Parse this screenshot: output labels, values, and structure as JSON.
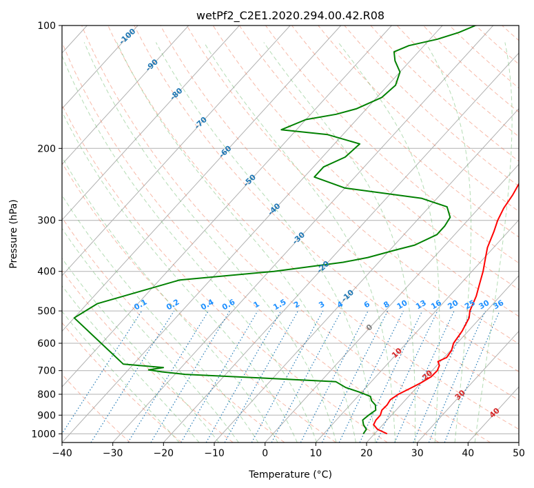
{
  "chart_data": {
    "type": "line",
    "subtype": "skew-t log-p diagram",
    "title": "wetPf2_C2E1.2020.294.00.42.R08",
    "xlabel": "Temperature (°C)",
    "ylabel": "Pressure (hPa)",
    "xlim": [
      -40,
      50
    ],
    "ylim": [
      1050,
      100
    ],
    "y_scale": "log",
    "grid": true,
    "x_ticks": [
      -40,
      -30,
      -20,
      -10,
      0,
      10,
      20,
      30,
      40,
      50
    ],
    "x_tick_labels": [
      "−40",
      "−30",
      "−20",
      "−10",
      "0",
      "10",
      "20",
      "30",
      "40",
      "50"
    ],
    "y_ticks": [
      1000,
      900,
      800,
      700,
      600,
      500,
      400,
      300,
      200,
      100
    ],
    "y_tick_labels": [
      "1000",
      "900",
      "800",
      "700",
      "600",
      "500",
      "400",
      "300",
      "200",
      "100"
    ],
    "series": [
      {
        "color": "#ff0000",
        "points": [
          [
            1000,
            22.5
          ],
          [
            975,
            19.8
          ],
          [
            950,
            18.2
          ],
          [
            925,
            17.8
          ],
          [
            900,
            17.8
          ],
          [
            875,
            17.2
          ],
          [
            850,
            17.3
          ],
          [
            825,
            17.0
          ],
          [
            800,
            17.6
          ],
          [
            775,
            18.8
          ],
          [
            750,
            20.0
          ],
          [
            725,
            20.9
          ],
          [
            700,
            21.0
          ],
          [
            680,
            20.5
          ],
          [
            665,
            19.5
          ],
          [
            650,
            20.5
          ],
          [
            625,
            20.2
          ],
          [
            600,
            19.3
          ],
          [
            560,
            18.8
          ],
          [
            520,
            17.8
          ],
          [
            500,
            16.7
          ],
          [
            460,
            15.3
          ],
          [
            430,
            13.8
          ],
          [
            400,
            12.2
          ],
          [
            370,
            10.2
          ],
          [
            350,
            8.8
          ],
          [
            320,
            7.2
          ],
          [
            300,
            5.9
          ],
          [
            280,
            4.9
          ],
          [
            260,
            4.3
          ],
          [
            240,
            3.3
          ],
          [
            220,
            1.8
          ],
          [
            200,
            -0.5
          ],
          [
            180,
            -3.6
          ],
          [
            165,
            -6.5
          ],
          [
            155,
            -8.8
          ],
          [
            145,
            -10.5
          ],
          [
            135,
            -12.0
          ],
          [
            125,
            -13.5
          ],
          [
            115,
            -15.5
          ],
          [
            108,
            -18.0
          ],
          [
            104,
            -21.0
          ],
          [
            100,
            -24.0
          ]
        ]
      },
      {
        "color": "#008000",
        "points": [
          [
            1000,
            17.8
          ],
          [
            975,
            17.6
          ],
          [
            950,
            16.2
          ],
          [
            925,
            15.2
          ],
          [
            900,
            15.5
          ],
          [
            875,
            16.0
          ],
          [
            850,
            15.0
          ],
          [
            830,
            13.5
          ],
          [
            810,
            12.5
          ],
          [
            790,
            9.5
          ],
          [
            770,
            6.0
          ],
          [
            745,
            3.0
          ],
          [
            730,
            -12.0
          ],
          [
            715,
            -28.0
          ],
          [
            705,
            -33.0
          ],
          [
            697,
            -36.0
          ],
          [
            688,
            -33.5
          ],
          [
            675,
            -42.0
          ],
          [
            520,
            -60.0
          ],
          [
            480,
            -58.0
          ],
          [
            420,
            -46.0
          ],
          [
            400,
            -29.0
          ],
          [
            380,
            -17.0
          ],
          [
            370,
            -13.0
          ],
          [
            355,
            -9.0
          ],
          [
            345,
            -6.0
          ],
          [
            325,
            -3.5
          ],
          [
            310,
            -3.5
          ],
          [
            295,
            -4.0
          ],
          [
            278,
            -6.5
          ],
          [
            265,
            -13.0
          ],
          [
            250,
            -30.0
          ],
          [
            235,
            -38.0
          ],
          [
            222,
            -38.0
          ],
          [
            210,
            -35.5
          ],
          [
            195,
            -35.0
          ],
          [
            185,
            -43.0
          ],
          [
            180,
            -53.0
          ],
          [
            170,
            -50.0
          ],
          [
            165,
            -45.0
          ],
          [
            160,
            -42.0
          ],
          [
            150,
            -39.0
          ],
          [
            140,
            -38.5
          ],
          [
            130,
            -40.0
          ],
          [
            122,
            -43.0
          ],
          [
            116,
            -44.8
          ],
          [
            112,
            -43.0
          ],
          [
            108,
            -38.5
          ],
          [
            104,
            -35.5
          ],
          [
            100,
            -33.5
          ]
        ]
      }
    ],
    "dry_adiabat_labels": [
      "-100",
      "-90",
      "-80",
      "-70",
      "-60",
      "-50",
      "-40",
      "-30",
      "-20",
      "-10",
      "0",
      "10",
      "20",
      "30",
      "40"
    ],
    "mixing_ratio_labels": [
      "0.1",
      "0.2",
      "0.4",
      "0.6",
      "1",
      "1.5",
      "2",
      "3",
      "4",
      "6",
      "8",
      "10",
      "13",
      "16",
      "20",
      "25",
      "30",
      "36"
    ]
  },
  "colors": {
    "temperature": "#ff0000",
    "dewpoint": "#008000",
    "dry_adiabat": "#f08060",
    "moist_adiabat": "#6ab96a",
    "mixing_ratio": "#1f77b4",
    "isotherm": "#808080",
    "grid": "#b0b0b0",
    "cold_label": "#1f77b4",
    "warm_label": "#d62728",
    "zero_label": "#808080",
    "mixing_label": "#1e90ff"
  }
}
